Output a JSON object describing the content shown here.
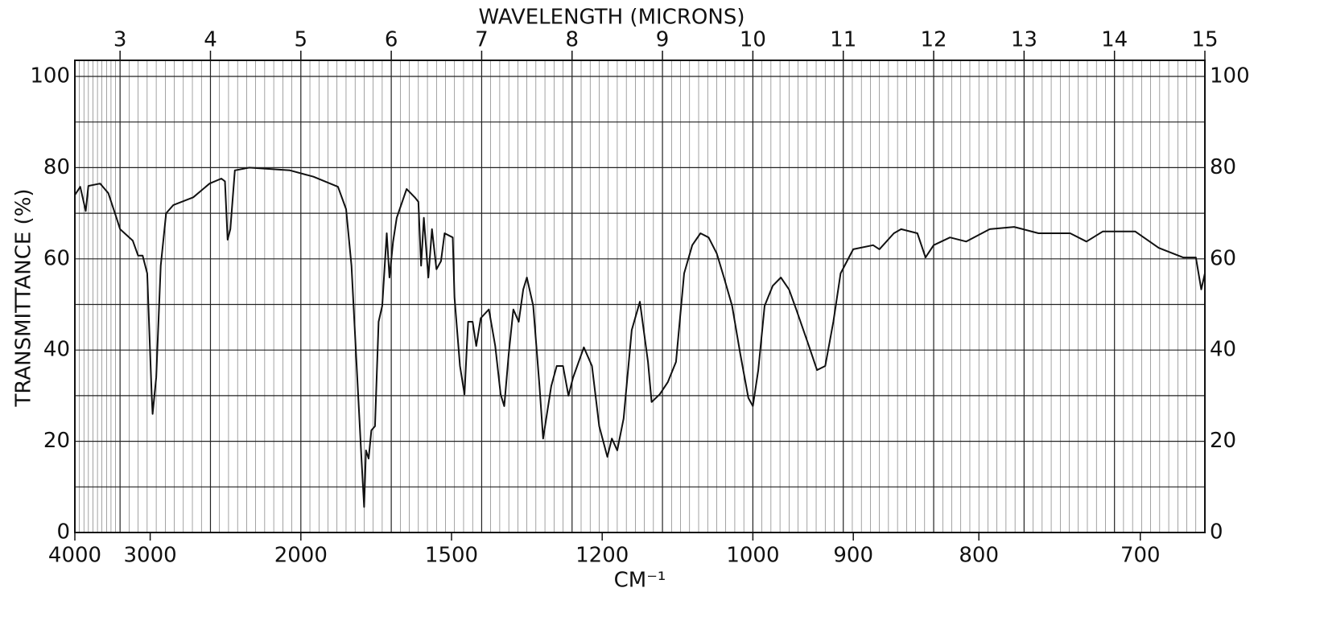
{
  "chart_data": {
    "type": "line",
    "title": "WAVELENGTH      (MICRONS)",
    "y_label": "TRANSMITTANCE (%)",
    "x2_label": "CM⁻¹",
    "xlim": [
      2.5,
      15
    ],
    "xticks": [
      3,
      4,
      5,
      6,
      7,
      8,
      9,
      10,
      11,
      12,
      13,
      14,
      15
    ],
    "x2ticks": [
      4000,
      3000,
      2000,
      1500,
      1200,
      1000,
      900,
      800,
      700
    ],
    "ylim": [
      0,
      100
    ],
    "yticks": [
      0,
      20,
      40,
      60,
      80,
      100
    ],
    "grid": true,
    "series": [
      {
        "color": "#111111",
        "x": [
          2.5,
          2.56,
          2.62,
          2.65,
          2.78,
          2.87,
          2.96,
          3.0,
          3.14,
          3.2,
          3.25,
          3.3,
          3.35,
          3.36,
          3.4,
          3.45,
          3.51,
          3.59,
          3.81,
          3.99,
          4.12,
          4.16,
          4.19,
          4.22,
          4.27,
          4.43,
          4.88,
          5.14,
          5.41,
          5.5,
          5.56,
          5.62,
          5.67,
          5.7,
          5.72,
          5.75,
          5.78,
          5.82,
          5.86,
          5.9,
          5.95,
          5.98,
          6.02,
          6.06,
          6.17,
          6.26,
          6.3,
          6.33,
          6.36,
          6.41,
          6.45,
          6.5,
          6.55,
          6.59,
          6.68,
          6.7,
          6.76,
          6.81,
          6.85,
          6.9,
          6.94,
          6.99,
          7.08,
          7.15,
          7.21,
          7.25,
          7.3,
          7.35,
          7.41,
          7.46,
          7.5,
          7.57,
          7.64,
          7.68,
          7.77,
          7.83,
          7.9,
          7.96,
          8.01,
          8.13,
          8.22,
          8.3,
          8.39,
          8.44,
          8.5,
          8.57,
          8.66,
          8.75,
          8.84,
          8.88,
          8.97,
          9.06,
          9.15,
          9.24,
          9.33,
          9.42,
          9.51,
          9.6,
          9.68,
          9.77,
          9.86,
          9.95,
          10.0,
          10.06,
          10.13,
          10.22,
          10.31,
          10.4,
          10.48,
          10.62,
          10.71,
          10.8,
          10.89,
          10.97,
          11.11,
          11.33,
          11.4,
          11.56,
          11.64,
          11.82,
          11.91,
          12.0,
          12.18,
          12.36,
          12.62,
          12.89,
          13.16,
          13.51,
          13.69,
          13.87,
          14.23,
          14.49,
          14.76,
          14.9,
          14.96,
          15.0
        ],
        "values": [
          74,
          75.8,
          70.5,
          76,
          76.5,
          74.4,
          69,
          66.5,
          64,
          60.7,
          60.7,
          56.8,
          30,
          26,
          34,
          58.5,
          70,
          71.8,
          73.5,
          76.5,
          77.6,
          77,
          64.2,
          66.5,
          79.4,
          80,
          79.4,
          78,
          75.8,
          70.9,
          58.5,
          35.6,
          16.2,
          5.6,
          18,
          16.2,
          22.4,
          23.3,
          46.2,
          49.7,
          65.6,
          55.9,
          63.8,
          69,
          75.3,
          73.5,
          72.5,
          58.5,
          69,
          55.9,
          66.5,
          57.7,
          59.5,
          65.6,
          64.7,
          51.5,
          36.5,
          30.3,
          46.2,
          46.2,
          40.9,
          47,
          48.9,
          40.9,
          30.3,
          27.7,
          39.2,
          48.9,
          46.2,
          53.3,
          55.9,
          49.7,
          32.1,
          20.6,
          32.1,
          36.5,
          36.5,
          30,
          33.9,
          40.6,
          36.5,
          23.3,
          16.6,
          20.6,
          18,
          25,
          44.4,
          50.6,
          37.4,
          28.6,
          30.3,
          33,
          37.4,
          56.8,
          63,
          65.6,
          64.7,
          61.2,
          55.9,
          49.7,
          39.2,
          29.5,
          27.7,
          35.6,
          49.7,
          54.1,
          55.9,
          53.3,
          48.9,
          40.9,
          35.6,
          36.5,
          46.2,
          56.8,
          62.1,
          63,
          62.1,
          65.6,
          66.5,
          65.6,
          60.3,
          63,
          64.7,
          63.8,
          66.5,
          67,
          65.6,
          65.6,
          63.8,
          66,
          66,
          62.4,
          60.3,
          60.3,
          53.3,
          56.8
        ]
      }
    ]
  }
}
